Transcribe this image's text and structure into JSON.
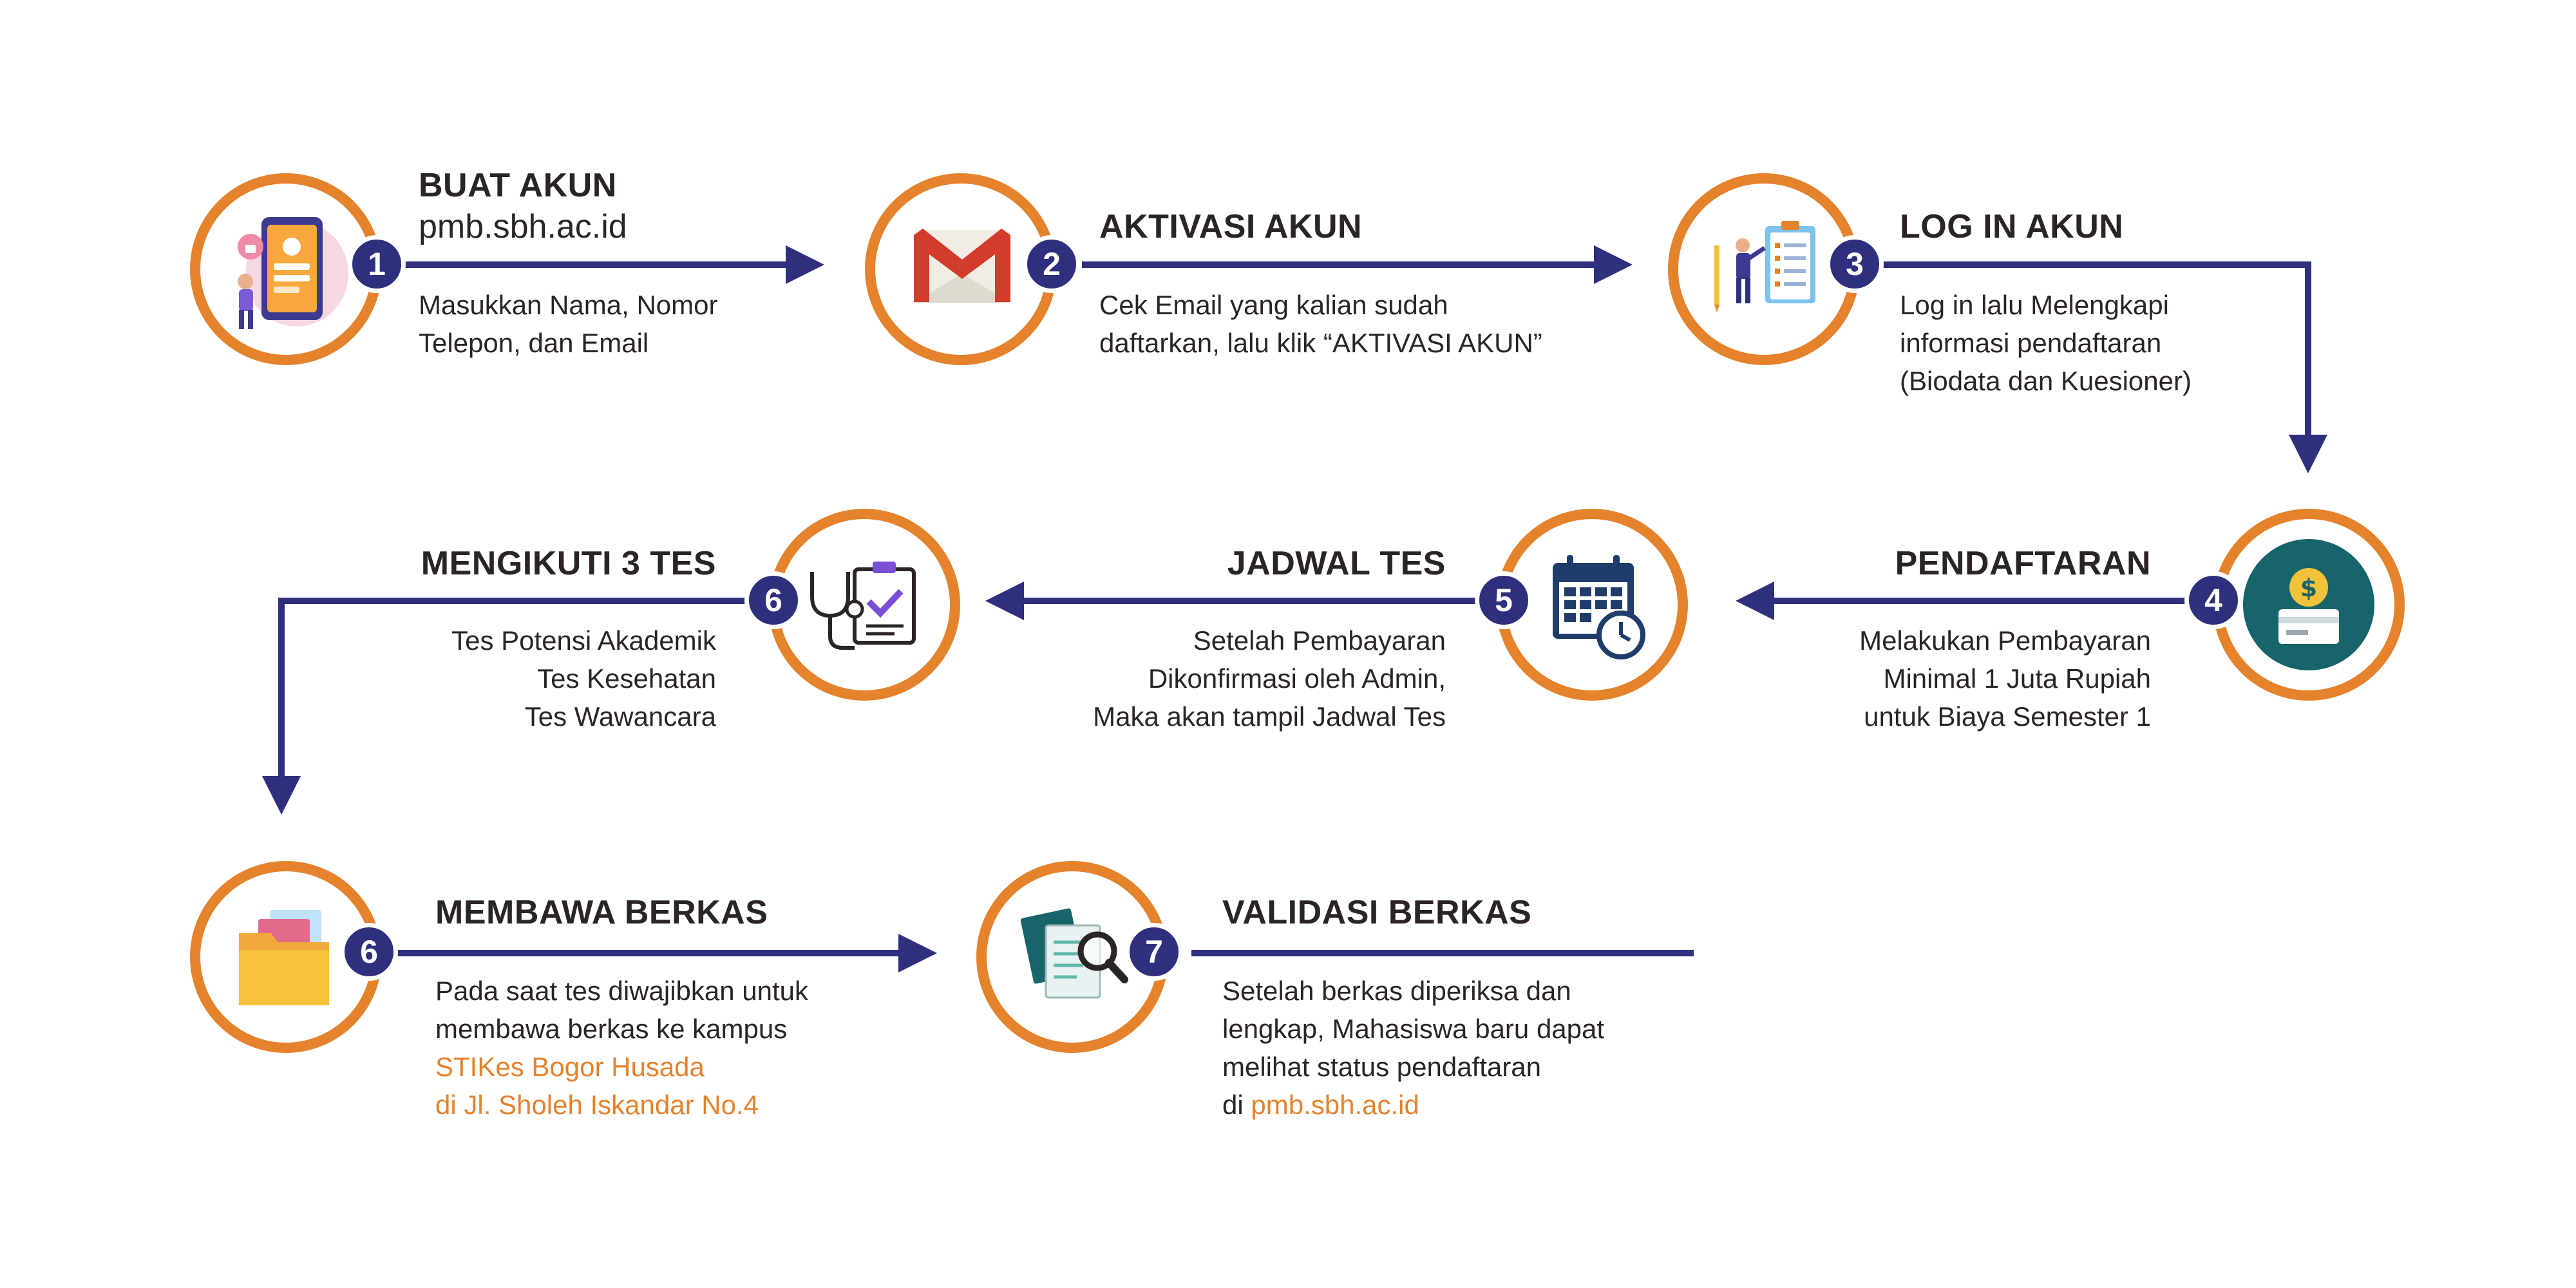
{
  "colors": {
    "accent": "#e5822c",
    "navy": "#2e2f7d",
    "text": "#2b2424"
  },
  "steps": [
    {
      "number": "1",
      "title": "BUAT AKUN",
      "url": "pmb.sbh.ac.id",
      "icon": "phone-profile-icon",
      "desc": [
        "Masukkan Nama, Nomor",
        "Telepon, dan Email"
      ]
    },
    {
      "number": "2",
      "title": "AKTIVASI AKUN",
      "icon": "gmail-icon",
      "desc": [
        "Cek Email yang kalian sudah",
        "daftarkan, lalu klik “AKTIVASI AKUN”"
      ]
    },
    {
      "number": "3",
      "title": "LOG IN AKUN",
      "icon": "clipboard-person-icon",
      "desc": [
        "Log in lalu Melengkapi",
        "informasi pendaftaran",
        "(Biodata dan Kuesioner)"
      ]
    },
    {
      "number": "4",
      "title": "PENDAFTARAN",
      "icon": "payment-icon",
      "desc": [
        "Melakukan Pembayaran",
        "Minimal 1 Juta Rupiah",
        "untuk Biaya Semester 1"
      ]
    },
    {
      "number": "5",
      "title": "JADWAL TES",
      "icon": "calendar-clock-icon",
      "desc": [
        "Setelah Pembayaran",
        "Dikonfirmasi oleh Admin,",
        "Maka akan tampil Jadwal Tes"
      ]
    },
    {
      "number": "6",
      "title": "MENGIKUTI 3 TES",
      "icon": "stethoscope-clipboard-icon",
      "desc": [
        "Tes Potensi Akademik",
        "Tes Kesehatan",
        "Tes Wawancara"
      ]
    },
    {
      "number": "6",
      "title": "MEMBAWA BERKAS",
      "icon": "folder-icon",
      "desc": [
        "Pada saat tes diwajibkan untuk",
        "membawa berkas ke kampus"
      ],
      "desc_highlight": [
        "STIKes Bogor Husada",
        "di Jl. Sholeh Iskandar No.4"
      ]
    },
    {
      "number": "7",
      "title": "VALIDASI BERKAS",
      "icon": "document-search-icon",
      "desc": [
        "Setelah berkas diperiksa dan",
        "lengkap, Mahasiswa baru dapat",
        "melihat status pendaftaran"
      ],
      "desc_last_prefix": "di ",
      "desc_last_link": "pmb.sbh.ac.id"
    }
  ]
}
